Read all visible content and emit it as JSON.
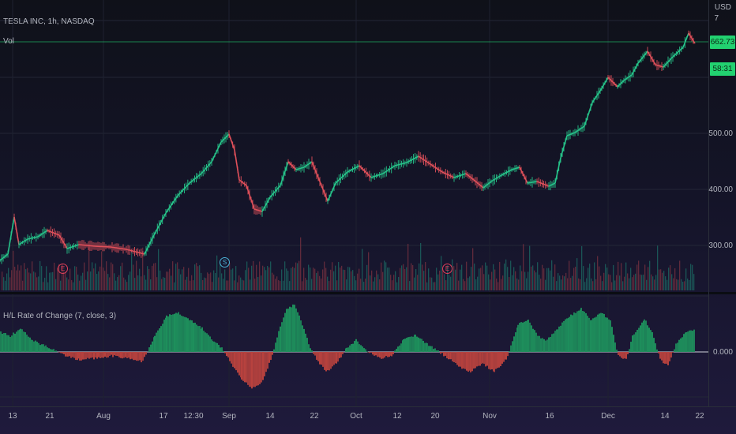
{
  "legend": {
    "symbol": "TESLA INC, 1h, NASDAQ",
    "volume": "Vol",
    "indicator": "H/L Rate of Change (7, close, 3)"
  },
  "price_scale": {
    "currency": "USD",
    "currency_top": "7",
    "labels": [
      "500.00",
      "400.00",
      "300.00"
    ],
    "indicator_label": "0.000"
  },
  "price_tags": [
    "662.73",
    "58:31"
  ],
  "time_axis": {
    "labels": [
      "13",
      "21",
      "Aug",
      "17",
      "12:30",
      "Sep",
      "14",
      "22",
      "Oct",
      "12",
      "20",
      "Nov",
      "16",
      "Dec",
      "14",
      "22"
    ]
  },
  "markers": [
    "E",
    "S",
    "E"
  ],
  "colors": {
    "up": "#26c48a",
    "down": "#e0505a",
    "hist_up": "#1e8f5c",
    "hist_down": "#b8423e",
    "price_line": "#22d170"
  }
}
